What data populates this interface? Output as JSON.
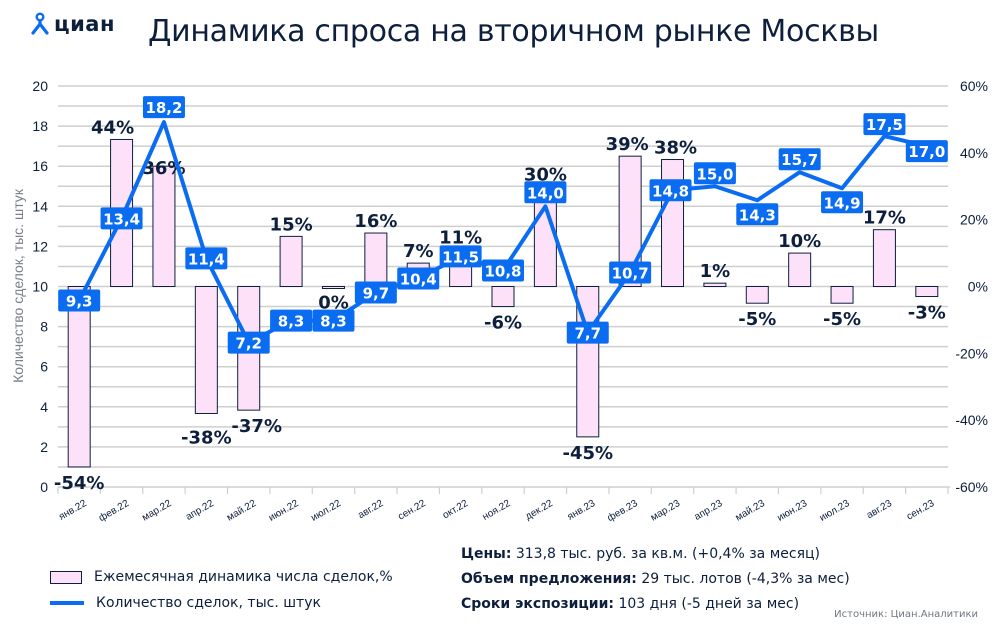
{
  "header": {
    "logo_text": "циан",
    "title": "Динамика спроса на вторичном рынке Москвы"
  },
  "colors": {
    "line": "#0a6cf0",
    "bar_fill": "#fde1f8",
    "bar_stroke": "#0d1f3c",
    "text": "#0d1f3c",
    "grid": "#cfcfcf"
  },
  "chart_data": {
    "type": "bar+line",
    "title": "Динамика спроса на вторичном рынке Москвы",
    "ylabel": "Количество сделок, тыс. штук",
    "ylim": [
      0,
      20
    ],
    "y_ticks": [
      "0",
      "2",
      "4",
      "6",
      "8",
      "10",
      "12",
      "14",
      "16",
      "18",
      "20"
    ],
    "y2lim": [
      -60,
      60
    ],
    "y2_ticks": [
      "-60%",
      "-40%",
      "-20%",
      "0%",
      "20%",
      "40%",
      "60%"
    ],
    "grid": true,
    "categories": [
      "янв.22",
      "фев.22",
      "мар.22",
      "апр.22",
      "май.22",
      "июн.22",
      "июл.22",
      "авг.22",
      "сен.22",
      "окт.22",
      "ноя.22",
      "дек.22",
      "янв.23",
      "фев.23",
      "мар.23",
      "апр.23",
      "май.23",
      "июн.23",
      "июл.23",
      "авг.23",
      "сен.23"
    ],
    "series": [
      {
        "name": "Ежемесячная динамика числа сделок,%",
        "type": "bar",
        "axis": "right",
        "values": [
          -54,
          44,
          36,
          -38,
          -37,
          15,
          0,
          16,
          7,
          11,
          -6,
          30,
          -45,
          39,
          38,
          1,
          -5,
          10,
          -5,
          17,
          -3
        ],
        "labels": [
          "-54%",
          "44%",
          "36%",
          "-38%",
          "-37%",
          "15%",
          "0%",
          "16%",
          "7%",
          "11%",
          "-6%",
          "30%",
          "-45%",
          "39%",
          "38%",
          "1%",
          "-5%",
          "10%",
          "-5%",
          "17%",
          "-3%"
        ]
      },
      {
        "name": "Количество сделок, тыс. штук",
        "type": "line",
        "axis": "left",
        "values": [
          9.3,
          13.4,
          18.2,
          11.4,
          7.2,
          8.3,
          8.3,
          9.7,
          10.4,
          11.5,
          10.8,
          14.0,
          7.7,
          10.7,
          14.8,
          15.0,
          14.3,
          15.7,
          14.9,
          17.5,
          17.0
        ],
        "labels": [
          "9,3",
          "13,4",
          "18,2",
          "11,4",
          "7,2",
          "8,3",
          "8,3",
          "9,7",
          "10,4",
          "11,5",
          "10,8",
          "14,0",
          "7,7",
          "10,7",
          "14,8",
          "15,0",
          "14,3",
          "15,7",
          "14,9",
          "17,5",
          "17,0"
        ]
      }
    ],
    "legend_position": "bottom-left"
  },
  "legend": {
    "bar_label": "Ежемесячная динамика числа сделок,%",
    "line_label": "Количество сделок, тыс. штук"
  },
  "stats": {
    "prices_label": "Цены:",
    "prices_value": " 313,8 тыс. руб. за кв.м. (+0,4% за месяц)",
    "supply_label": "Объем предложения:",
    "supply_value": " 29 тыс. лотов (-4,3% за мес)",
    "exposure_label": "Сроки экспозиции:",
    "exposure_value": " 103 дня (-5 дней за мес)"
  },
  "source": "Источник: Циан.Аналитики"
}
